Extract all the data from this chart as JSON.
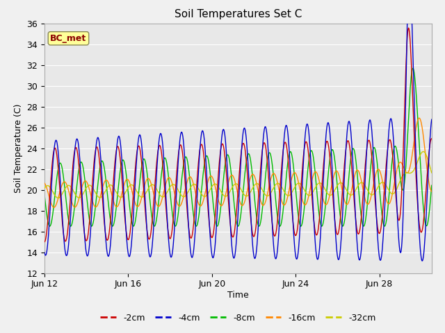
{
  "title": "Soil Temperatures Set C",
  "xlabel": "Time",
  "ylabel": "Soil Temperature (C)",
  "ylim": [
    12,
    36
  ],
  "xlim_days": [
    0,
    18.5
  ],
  "x_ticks_labels": [
    "Jun 12",
    "Jun 16",
    "Jun 20",
    "Jun 24",
    "Jun 28"
  ],
  "x_ticks_pos": [
    0,
    4,
    8,
    12,
    16
  ],
  "legend_labels": [
    "-2cm",
    "-4cm",
    "-8cm",
    "-16cm",
    "-32cm"
  ],
  "legend_colors": [
    "#cc0000",
    "#0000cc",
    "#00bb00",
    "#ff8800",
    "#cccc00"
  ],
  "annotation_text": "BC_met",
  "bg_color": "#e8e8e8",
  "grid_color": "#ffffff",
  "title_fontsize": 11,
  "label_fontsize": 9,
  "tick_fontsize": 9
}
